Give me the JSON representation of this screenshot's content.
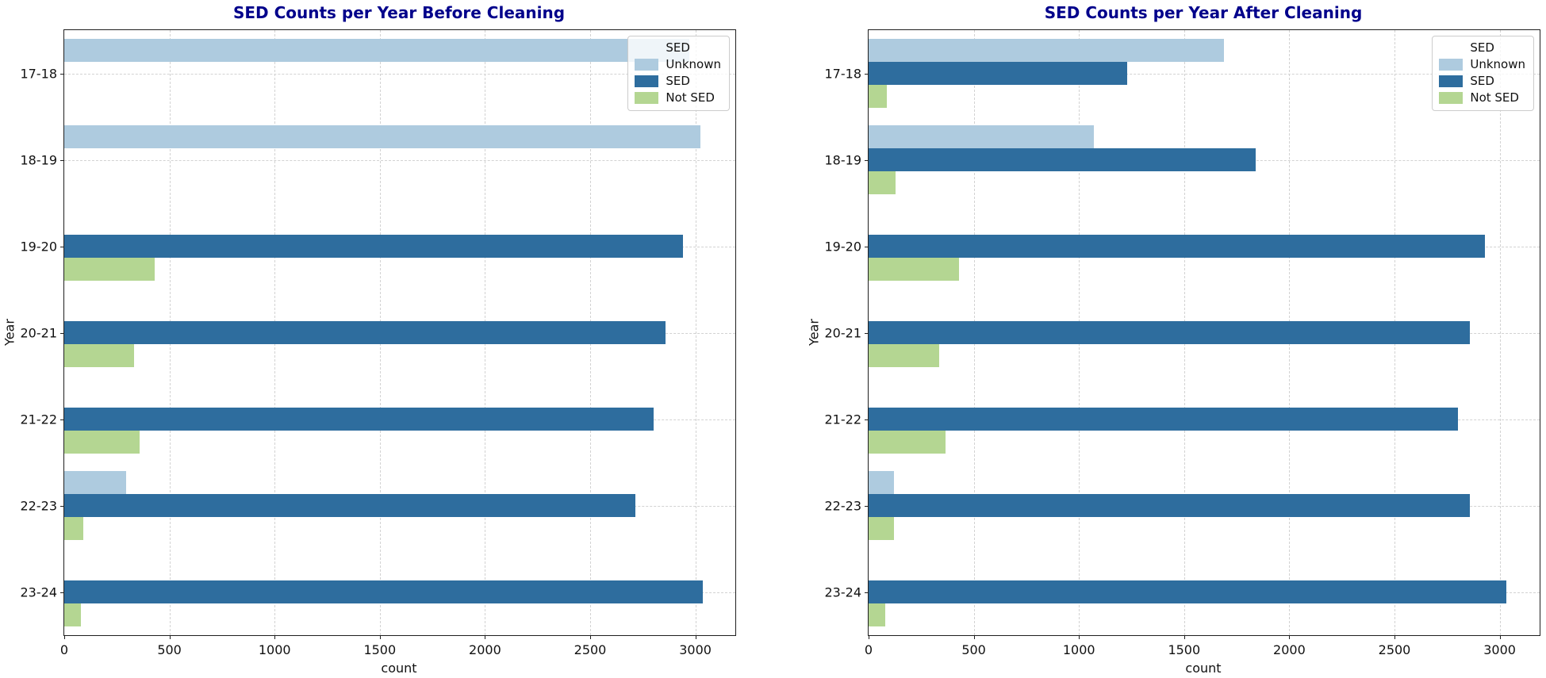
{
  "figure": {
    "background": "#ffffff"
  },
  "colors": {
    "unknown": "#aecbdf",
    "sed": "#2e6d9e",
    "not_sed": "#b4d692",
    "title": "#00008b",
    "grid": "#d2d2d2",
    "spine": "#1f1f1f"
  },
  "legend": {
    "title": "SED",
    "entries": [
      {
        "label": "Unknown",
        "color_key": "unknown"
      },
      {
        "label": "SED",
        "color_key": "sed"
      },
      {
        "label": "Not SED",
        "color_key": "not_sed"
      }
    ]
  },
  "chart_data": [
    {
      "type": "bar",
      "orientation": "horizontal",
      "title": "SED Counts per Year Before Cleaning",
      "xlabel": "count",
      "ylabel": "Year",
      "xlim": [
        0,
        3190
      ],
      "xticks": [
        0,
        500,
        1000,
        1500,
        2000,
        2500,
        3000
      ],
      "grid": true,
      "legend_position": "upper right",
      "categories": [
        "17-18",
        "18-19",
        "19-20",
        "20-21",
        "21-22",
        "22-23",
        "23-24"
      ],
      "series": [
        {
          "name": "Unknown",
          "color_key": "unknown",
          "values": [
            2970,
            3025,
            0,
            0,
            0,
            295,
            0
          ]
        },
        {
          "name": "SED",
          "color_key": "sed",
          "values": [
            0,
            0,
            2940,
            2860,
            2800,
            2715,
            3035
          ]
        },
        {
          "name": "Not SED",
          "color_key": "not_sed",
          "values": [
            0,
            0,
            430,
            330,
            360,
            90,
            80
          ]
        }
      ]
    },
    {
      "type": "bar",
      "orientation": "horizontal",
      "title": "SED Counts per Year After Cleaning",
      "xlabel": "count",
      "ylabel": "Year",
      "xlim": [
        0,
        3190
      ],
      "xticks": [
        0,
        500,
        1000,
        1500,
        2000,
        2500,
        3000
      ],
      "grid": true,
      "legend_position": "upper right",
      "categories": [
        "17-18",
        "18-19",
        "19-20",
        "20-21",
        "21-22",
        "22-23",
        "23-24"
      ],
      "series": [
        {
          "name": "Unknown",
          "color_key": "unknown",
          "values": [
            1690,
            1070,
            0,
            0,
            0,
            120,
            0
          ]
        },
        {
          "name": "SED",
          "color_key": "sed",
          "values": [
            1230,
            1840,
            2930,
            2860,
            2800,
            2860,
            3030
          ]
        },
        {
          "name": "Not SED",
          "color_key": "not_sed",
          "values": [
            85,
            130,
            430,
            335,
            365,
            120,
            80
          ]
        }
      ]
    }
  ]
}
